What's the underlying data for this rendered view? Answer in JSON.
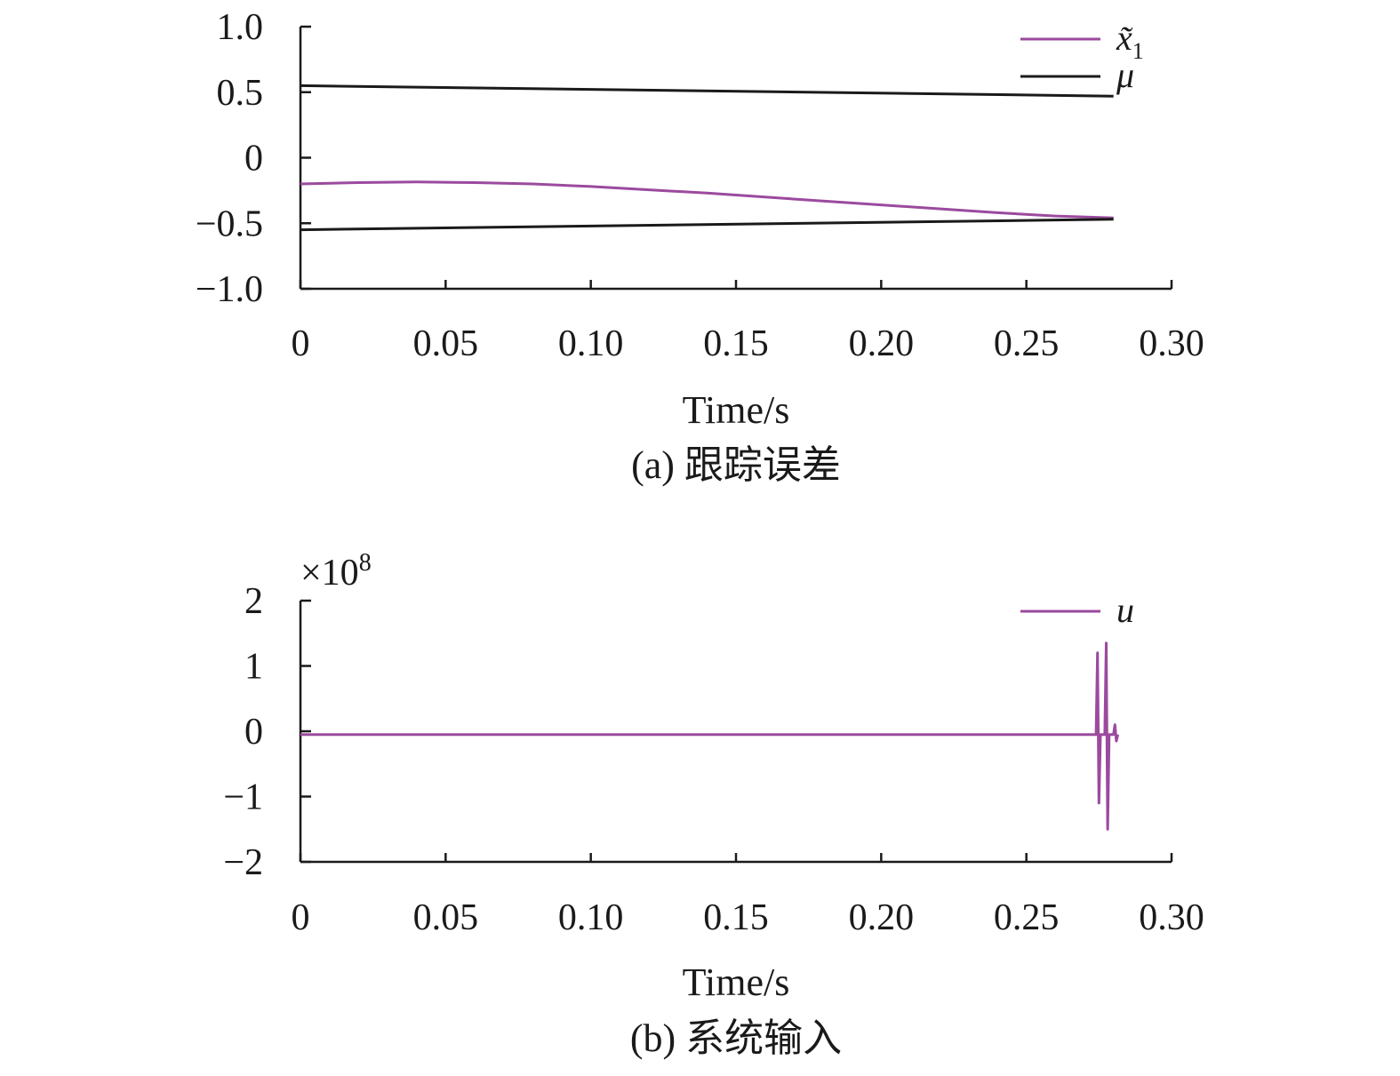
{
  "chart_data": [
    {
      "id": "a",
      "type": "line",
      "xlabel": "Time/s",
      "caption": "(a) 跟踪误差",
      "xlim": [
        0,
        0.3
      ],
      "ylim": [
        -1.0,
        1.0
      ],
      "x_ticks": [
        "0",
        "0.05",
        "0.10",
        "0.15",
        "0.20",
        "0.25",
        "0.30"
      ],
      "y_ticks": [
        "1.0",
        "0.5",
        "0",
        "−0.5",
        "−1.0"
      ],
      "y_tick_values": [
        1.0,
        0.5,
        0,
        -0.5,
        -1.0
      ],
      "x_tick_values": [
        0,
        0.05,
        0.1,
        0.15,
        0.2,
        0.25,
        0.3
      ],
      "legend_position": "top-right",
      "series": [
        {
          "name": "x̃",
          "name_subscript": "1",
          "color": "#9b4a9e",
          "x": [
            0,
            0.02,
            0.04,
            0.06,
            0.08,
            0.1,
            0.12,
            0.14,
            0.16,
            0.18,
            0.2,
            0.22,
            0.24,
            0.26,
            0.28
          ],
          "y": [
            -0.2,
            -0.19,
            -0.185,
            -0.19,
            -0.2,
            -0.22,
            -0.245,
            -0.27,
            -0.3,
            -0.33,
            -0.36,
            -0.39,
            -0.42,
            -0.445,
            -0.46
          ]
        },
        {
          "name": "μ",
          "color": "#1a1a1a",
          "x": [
            0,
            0.28
          ],
          "y": [
            0.55,
            0.47
          ]
        },
        {
          "name": "",
          "color": "#1a1a1a",
          "x": [
            0,
            0.28
          ],
          "y": [
            -0.55,
            -0.47
          ]
        }
      ]
    },
    {
      "id": "b",
      "type": "line",
      "xlabel": "Time/s",
      "caption": "(b) 系统输入",
      "scale_label": "×10",
      "scale_exponent": "8",
      "xlim": [
        0,
        0.3
      ],
      "ylim": [
        -2,
        2
      ],
      "x_ticks": [
        "0",
        "0.05",
        "0.10",
        "0.15",
        "0.20",
        "0.25",
        "0.30"
      ],
      "y_ticks": [
        "2",
        "1",
        "0",
        "−1",
        "−2"
      ],
      "y_tick_values": [
        2,
        1,
        0,
        -1,
        -2
      ],
      "x_tick_values": [
        0,
        0.05,
        0.1,
        0.15,
        0.2,
        0.25,
        0.3
      ],
      "legend_position": "top-right",
      "series": [
        {
          "name": "u",
          "color": "#9b4a9e",
          "x": [
            0,
            0.274,
            0.2745,
            0.275,
            0.2755,
            0.276,
            0.277,
            0.2775,
            0.278,
            0.2785,
            0.279,
            0.28,
            0.2805,
            0.281,
            0.2815
          ],
          "y": [
            -0.05,
            -0.05,
            1.2,
            -1.1,
            -0.05,
            -0.05,
            -0.05,
            1.35,
            -1.5,
            -0.05,
            -0.05,
            -0.05,
            0.1,
            -0.15,
            -0.05
          ]
        }
      ]
    }
  ]
}
